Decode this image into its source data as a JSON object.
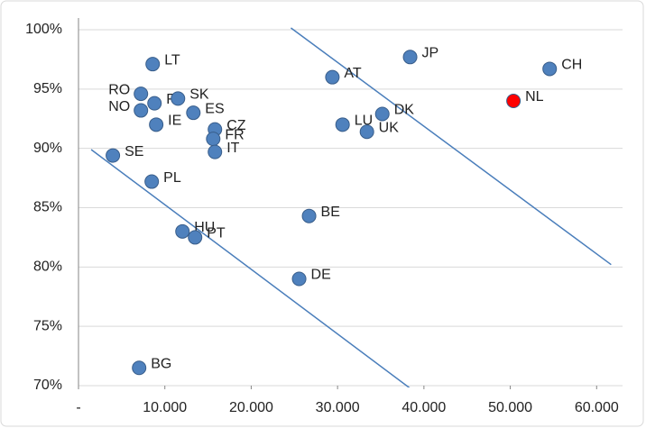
{
  "chart_data": {
    "type": "scatter",
    "labels": [
      "LT",
      "RO",
      "FI",
      "SK",
      "NO",
      "ES",
      "IE",
      "CZ",
      "FR",
      "IT",
      "SE",
      "PL",
      "HU",
      "PT",
      "BG",
      "DE",
      "BE",
      "AT",
      "LU",
      "UK",
      "DK",
      "JP",
      "CH",
      "NL"
    ],
    "x": [
      8590,
      7230,
      8800,
      11520,
      7230,
      13300,
      9000,
      15800,
      15600,
      15800,
      3980,
      8480,
      12040,
      13500,
      7020,
      25550,
      26700,
      29400,
      30580,
      33400,
      35180,
      38400,
      54560,
      50370
    ],
    "y": [
      97.1,
      94.6,
      93.8,
      94.2,
      93.2,
      93.0,
      92.0,
      91.6,
      90.8,
      89.7,
      89.4,
      87.2,
      83.0,
      82.5,
      71.5,
      79.0,
      84.3,
      96.0,
      92.0,
      91.4,
      92.9,
      97.7,
      96.7,
      94.0
    ],
    "colors": [
      "#4f81bd",
      "#4f81bd",
      "#4f81bd",
      "#4f81bd",
      "#4f81bd",
      "#4f81bd",
      "#4f81bd",
      "#4f81bd",
      "#4f81bd",
      "#4f81bd",
      "#4f81bd",
      "#4f81bd",
      "#4f81bd",
      "#4f81bd",
      "#4f81bd",
      "#4f81bd",
      "#4f81bd",
      "#4f81bd",
      "#4f81bd",
      "#4f81bd",
      "#4f81bd",
      "#4f81bd",
      "#4f81bd",
      "#ff0000"
    ],
    "lines": [
      {
        "x": [
          1470,
          38540
        ],
        "y": [
          89.9,
          69.7
        ],
        "color": "#4a7ebb"
      },
      {
        "x": [
          24600,
          61680
        ],
        "y": [
          100.15,
          80.2
        ],
        "color": "#4a7ebb"
      }
    ],
    "xlim": [
      0,
      63000
    ],
    "ylim": [
      70,
      100
    ],
    "xticks": [
      {
        "value": 0,
        "label": "-"
      },
      {
        "value": 10000,
        "label": "10.000"
      },
      {
        "value": 20000,
        "label": "20.000"
      },
      {
        "value": 30000,
        "label": "30.000"
      },
      {
        "value": 40000,
        "label": "40.000"
      },
      {
        "value": 50000,
        "label": "50.000"
      },
      {
        "value": 60000,
        "label": "60.000"
      }
    ],
    "yticks": [
      {
        "value": 70,
        "label": "70%"
      },
      {
        "value": 75,
        "label": "75%"
      },
      {
        "value": 80,
        "label": "80%"
      },
      {
        "value": 85,
        "label": "85%"
      },
      {
        "value": 90,
        "label": "90%"
      },
      {
        "value": 95,
        "label": "95%"
      },
      {
        "value": 100,
        "label": "100%"
      }
    ],
    "grid": true
  }
}
